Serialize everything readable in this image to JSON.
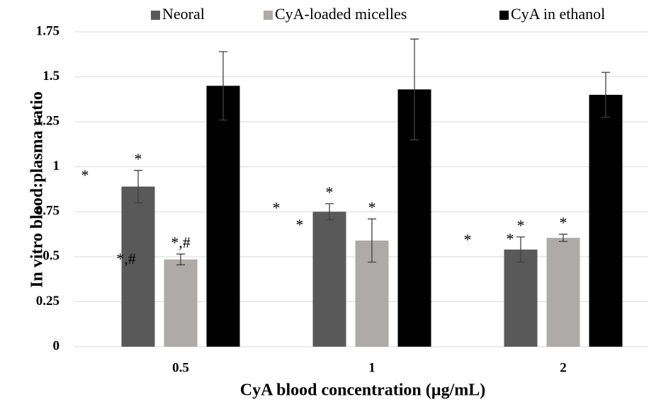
{
  "chart_data": {
    "type": "bar",
    "y_label": "In vitro blood:plasma ratio",
    "x_label": "CyA blood concentration (µg/mL)",
    "categories": [
      "0.5",
      "1",
      "2"
    ],
    "series": [
      {
        "name": "Neoral",
        "color": "#595959",
        "values": [
          0.89,
          0.75,
          0.54
        ],
        "errors": [
          0.09,
          0.045,
          0.07
        ],
        "bar_labels": [
          "*",
          "*",
          "*"
        ]
      },
      {
        "name": "CyA-loaded micelles",
        "color": "#aeaaaa",
        "values": [
          0.485,
          0.59,
          0.605
        ],
        "errors": [
          0.03,
          0.12,
          0.02
        ],
        "bar_labels": [
          "*,#",
          "*",
          "*"
        ]
      },
      {
        "name": "CyA in ethanol",
        "color": "#000000",
        "values": [
          1.45,
          1.43,
          1.4
        ],
        "errors": [
          0.19,
          0.28,
          0.125
        ]
      }
    ],
    "annotations": [
      "*",
      "*,#",
      "*",
      "*",
      "*",
      "*"
    ],
    "ylim": [
      0,
      1.75
    ],
    "yticks": [
      0,
      0.25,
      0.5,
      0.75,
      1,
      1.25,
      1.5,
      1.75
    ],
    "grid": true
  }
}
